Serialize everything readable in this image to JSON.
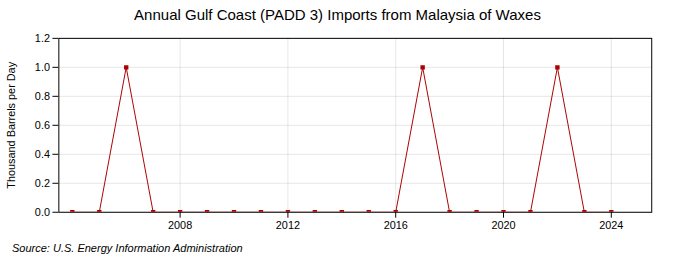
{
  "chart_data": {
    "type": "line",
    "title": "Annual Gulf Coast (PADD 3) Imports from Malaysia of Waxes",
    "ylabel": "Thousand Barrels per Day",
    "annotation": "Source: U.S. Energy Information Administration",
    "x": [
      2004,
      2005,
      2006,
      2007,
      2008,
      2009,
      2010,
      2011,
      2012,
      2013,
      2014,
      2015,
      2016,
      2017,
      2018,
      2019,
      2020,
      2021,
      2022,
      2023,
      2024
    ],
    "values": [
      0.0,
      0.0,
      1.0,
      0.0,
      0.0,
      0.0,
      0.0,
      0.0,
      0.0,
      0.0,
      0.0,
      0.0,
      0.0,
      1.0,
      0.0,
      0.0,
      0.0,
      0.0,
      1.0,
      0.0,
      0.0
    ],
    "color": "#aa0000",
    "marker": "square",
    "line_style": "solid",
    "xlim": [
      2003.5,
      2025.5
    ],
    "xticks": [
      2008,
      2012,
      2016,
      2020,
      2024
    ],
    "ylim": [
      0.0,
      1.2
    ],
    "yticks": [
      {
        "value": 0,
        "label": "0.0"
      },
      0.2,
      0.4,
      0.6,
      0.8,
      {
        "value": 1,
        "label": "1.0"
      },
      1.2
    ],
    "grid": true
  }
}
